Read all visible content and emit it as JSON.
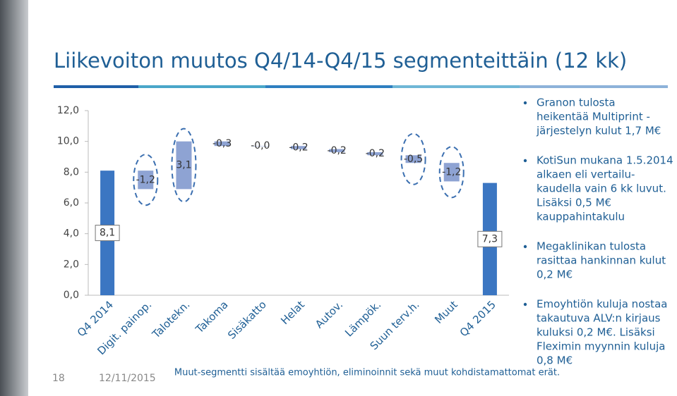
{
  "slide": {
    "title": "Liikevoiton muutos Q4/14-Q4/15 segmenteittäin (12 kk)",
    "bullets": [
      [
        "Granon tulosta",
        "heikentää Multiprint -",
        "järjestelyn kulut 1,7 M€"
      ],
      [
        "KotiSun mukana 1.5.2014",
        "alkaen eli vertailu-",
        "kaudella vain 6 kk luvut.",
        "Lisäksi 0,5 M€",
        "kauppahintakulu"
      ],
      [
        "Megaklinikan tulosta",
        "rasittaa hankinnan kulut",
        "0,2 M€"
      ],
      [
        "Emoyhtiön kuluja nostaa",
        "takautuva ALV:n kirjaus",
        "kuluksi 0,2 M€. Lisäksi",
        "Fleximin myynnin kuluja",
        "0,8 M€"
      ]
    ],
    "footnote": "Muut-segmentti sisältää emoyhtiön, eliminoinnit sekä muut kohdistamattomat erät.",
    "page_number": "18",
    "date": "12/11/2015"
  },
  "chart_data": {
    "type": "waterfall",
    "categories": [
      "Q4 2014",
      "Digit. painop.",
      "Talotekn.",
      "Takoma",
      "Sisäkatto",
      "Helat",
      "Autov.",
      "Lämpök.",
      "Suun terv.h.",
      "Muut",
      "Q4 2015"
    ],
    "values": [
      8.1,
      -1.2,
      3.1,
      -0.3,
      -0.0,
      -0.2,
      -0.2,
      -0.2,
      -0.5,
      -1.2,
      7.3
    ],
    "value_labels": [
      "8,1",
      "-1,2",
      "3,1",
      "-0,3",
      "-0,0",
      "-0,2",
      "-0,2",
      "-0,2",
      "-0,5",
      "-1,2",
      "7,3"
    ],
    "total_color": "#3b76c2",
    "change_color": "#8ea3d3",
    "ylim": [
      0,
      12
    ],
    "yticks": [
      {
        "value": 0,
        "label": "0,0"
      },
      {
        "value": 2,
        "label": "2,0"
      },
      {
        "value": 4,
        "label": "4,0"
      },
      {
        "value": 6,
        "label": "6,0"
      },
      {
        "value": 8,
        "label": "8,0"
      },
      {
        "value": 10,
        "label": "10,0"
      },
      {
        "value": 12,
        "label": "12,0"
      }
    ]
  }
}
